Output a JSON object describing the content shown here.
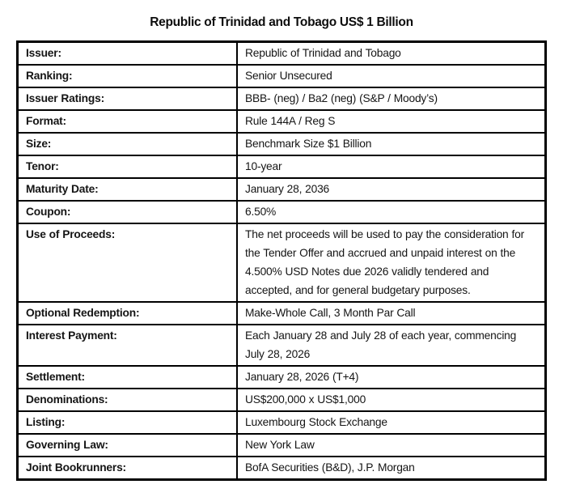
{
  "title": "Republic of Trinidad and Tobago US$ 1 Billion",
  "table": {
    "rows": [
      {
        "label": "Issuer:",
        "value": "Republic of Trinidad and Tobago"
      },
      {
        "label": "Ranking:",
        "value": "Senior Unsecured"
      },
      {
        "label": "Issuer Ratings:",
        "value": "BBB- (neg) / Ba2 (neg) (S&P / Moody’s)"
      },
      {
        "label": "Format:",
        "value": "Rule 144A / Reg S"
      },
      {
        "label": "Size:",
        "value": "Benchmark Size $1 Billion"
      },
      {
        "label": "Tenor:",
        "value": "10-year"
      },
      {
        "label": "Maturity Date:",
        "value": "January 28, 2036"
      },
      {
        "label": "Coupon:",
        "value": "6.50%"
      },
      {
        "label": "Use of Proceeds:",
        "value": "The net proceeds will be used to pay the consideration for the Tender Offer and accrued and unpaid interest on the 4.500% USD Notes due 2026 validly tendered and accepted, and for general budgetary purposes."
      },
      {
        "label": "Optional Redemption:",
        "value": "Make-Whole Call, 3 Month Par Call"
      },
      {
        "label": "Interest Payment:",
        "value": "Each January 28 and July 28 of each year, commencing July 28, 2026"
      },
      {
        "label": "Settlement:",
        "value": "January 28, 2026 (T+4)"
      },
      {
        "label": "Denominations:",
        "value": "US$200,000 x US$1,000"
      },
      {
        "label": "Listing:",
        "value": "Luxembourg Stock Exchange"
      },
      {
        "label": "Governing Law:",
        "value": "New York Law"
      },
      {
        "label": "Joint Bookrunners:",
        "value": "BofA Securities (B&D), J.P. Morgan"
      }
    ]
  }
}
